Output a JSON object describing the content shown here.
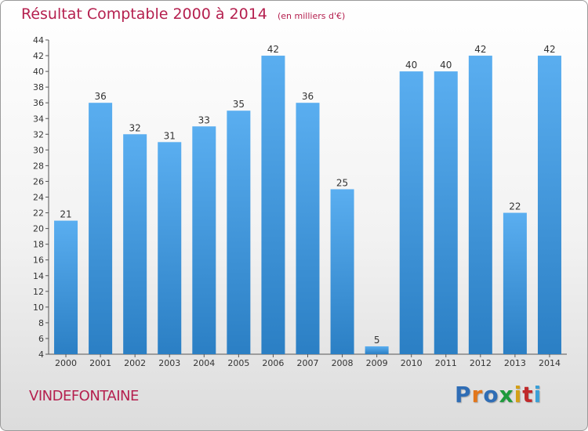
{
  "header": {
    "title": "Résultat Comptable 2000 à 2014",
    "unit": "(en milliers d'€)"
  },
  "footer": {
    "commune": "VINDEFONTAINE",
    "logo_text": "Proxiti",
    "logo_colors": [
      "#2f6db5",
      "#e2761b",
      "#2f6db5",
      "#1e9a3c",
      "#d4a017",
      "#c0292b",
      "#3aa0d8"
    ]
  },
  "colors": {
    "bar_light": "#5aaef0",
    "bar_dark": "#2b7fc4",
    "title": "#b5204f"
  },
  "chart_data": {
    "type": "bar",
    "categories": [
      "2000",
      "2001",
      "2002",
      "2003",
      "2004",
      "2005",
      "2006",
      "2007",
      "2008",
      "2009",
      "2010",
      "2011",
      "2012",
      "2013",
      "2014"
    ],
    "values": [
      21,
      36,
      32,
      31,
      33,
      35,
      42,
      36,
      25,
      5,
      40,
      40,
      42,
      22,
      42
    ],
    "title": "Résultat Comptable 2000 à 2014",
    "ylim": [
      4,
      44
    ],
    "yticks": [
      4,
      6,
      8,
      10,
      12,
      14,
      16,
      18,
      20,
      22,
      24,
      26,
      28,
      30,
      32,
      34,
      36,
      38,
      40,
      42,
      44
    ],
    "grid": false,
    "data_labels": true
  }
}
